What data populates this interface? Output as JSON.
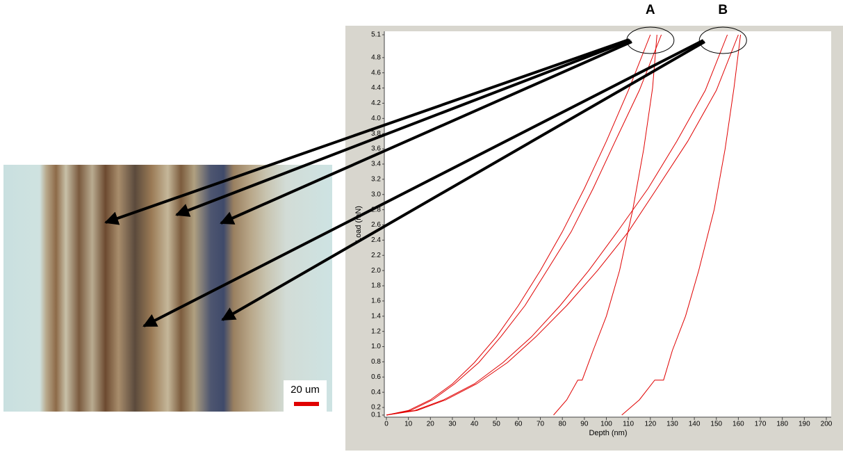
{
  "chart_data": {
    "type": "line",
    "xlabel": "Depth (nm)",
    "ylabel": "Load (mN)",
    "xlim": [
      0,
      200
    ],
    "ylim": [
      0.1,
      5.1
    ],
    "xticks": [
      0,
      10,
      20,
      30,
      40,
      50,
      60,
      70,
      80,
      90,
      100,
      110,
      120,
      130,
      140,
      150,
      160,
      170,
      180,
      190,
      200
    ],
    "yticks": [
      0.1,
      0.2,
      0.4,
      0.6,
      0.8,
      {
        "value": 1,
        "label": "1.0"
      },
      1.2,
      1.4,
      1.6,
      1.8,
      {
        "value": 2,
        "label": "2.0"
      },
      2.2,
      2.4,
      2.6,
      2.8,
      {
        "value": 3,
        "label": "3.0"
      },
      3.2,
      3.4,
      3.6,
      3.8,
      {
        "value": 4,
        "label": "4.0"
      },
      4.2,
      4.4,
      4.6,
      4.8,
      5.1
    ],
    "series": [
      {
        "color": "#e00000",
        "x": [
          0,
          10,
          20,
          30,
          40,
          50,
          60,
          70,
          80,
          90,
          100,
          110,
          120
        ],
        "values": [
          0.1,
          0.16,
          0.3,
          0.51,
          0.79,
          1.13,
          1.54,
          2.0,
          2.51,
          3.08,
          3.7,
          4.37,
          5.1
        ]
      },
      {
        "color": "#e00000",
        "x": [
          0,
          11,
          21,
          31,
          42,
          52,
          63,
          73,
          84,
          94,
          104,
          115,
          125
        ],
        "values": [
          0.1,
          0.16,
          0.3,
          0.51,
          0.79,
          1.13,
          1.54,
          2.0,
          2.51,
          3.08,
          3.7,
          4.37,
          5.1
        ]
      },
      {
        "color": "#e00000",
        "x": [
          0,
          13,
          26,
          40,
          53,
          66,
          79,
          92,
          105,
          119,
          132,
          145,
          155
        ],
        "values": [
          0.1,
          0.16,
          0.3,
          0.51,
          0.79,
          1.13,
          1.54,
          2.0,
          2.51,
          3.08,
          3.7,
          4.37,
          5.1
        ]
      },
      {
        "color": "#e00000",
        "x": [
          0,
          14,
          27,
          41,
          55,
          68,
          82,
          96,
          110,
          123,
          137,
          150,
          160
        ],
        "values": [
          0.1,
          0.16,
          0.3,
          0.51,
          0.79,
          1.13,
          1.54,
          2.0,
          2.51,
          3.08,
          3.7,
          4.37,
          5.1
        ]
      },
      {
        "color": "#e00000",
        "x": [
          123,
          121,
          117,
          112,
          106,
          100,
          94,
          89,
          87,
          82,
          76
        ],
        "values": [
          5.1,
          4.4,
          3.6,
          2.8,
          2.0,
          1.4,
          0.95,
          0.56,
          0.56,
          0.3,
          0.1
        ]
      },
      {
        "color": "#e00000",
        "x": [
          161,
          158,
          154,
          149,
          142,
          136,
          130,
          126,
          122,
          115,
          107
        ],
        "values": [
          5.1,
          4.4,
          3.6,
          2.8,
          2.0,
          1.4,
          0.95,
          0.56,
          0.56,
          0.3,
          0.1
        ]
      }
    ],
    "annotations": [
      {
        "text": "A",
        "x": 120,
        "y": 5.1
      },
      {
        "text": "B",
        "x": 153,
        "y": 5.1
      }
    ]
  },
  "image": {
    "scale_bar_label": "20 um"
  }
}
